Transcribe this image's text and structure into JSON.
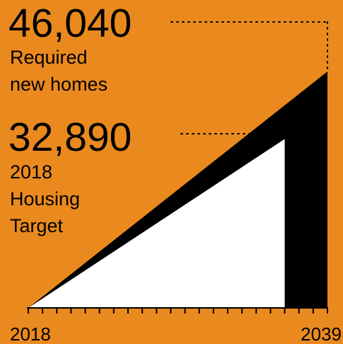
{
  "colors": {
    "background": "#EA8A1E",
    "required_fill": "#000000",
    "target_fill": "#FFFFFF",
    "ink": "#000000"
  },
  "chart_data": {
    "type": "area",
    "x_start": 2018,
    "x_end": 2039,
    "ylim": [
      0,
      46040
    ],
    "grid": false,
    "annotations": [
      {
        "value": "46,040",
        "lines": [
          "Required",
          "new homes"
        ]
      },
      {
        "value": "32,890",
        "lines": [
          "2018",
          "Housing",
          "Target"
        ]
      }
    ],
    "series": [
      {
        "name": "Required new homes",
        "x": [
          2018,
          2039
        ],
        "values": [
          0,
          46040
        ]
      },
      {
        "name": "2018 Housing Target",
        "x": [
          2018,
          2036
        ],
        "values": [
          0,
          32890
        ]
      }
    ],
    "tick_labels": [
      "2018",
      "2039"
    ]
  }
}
